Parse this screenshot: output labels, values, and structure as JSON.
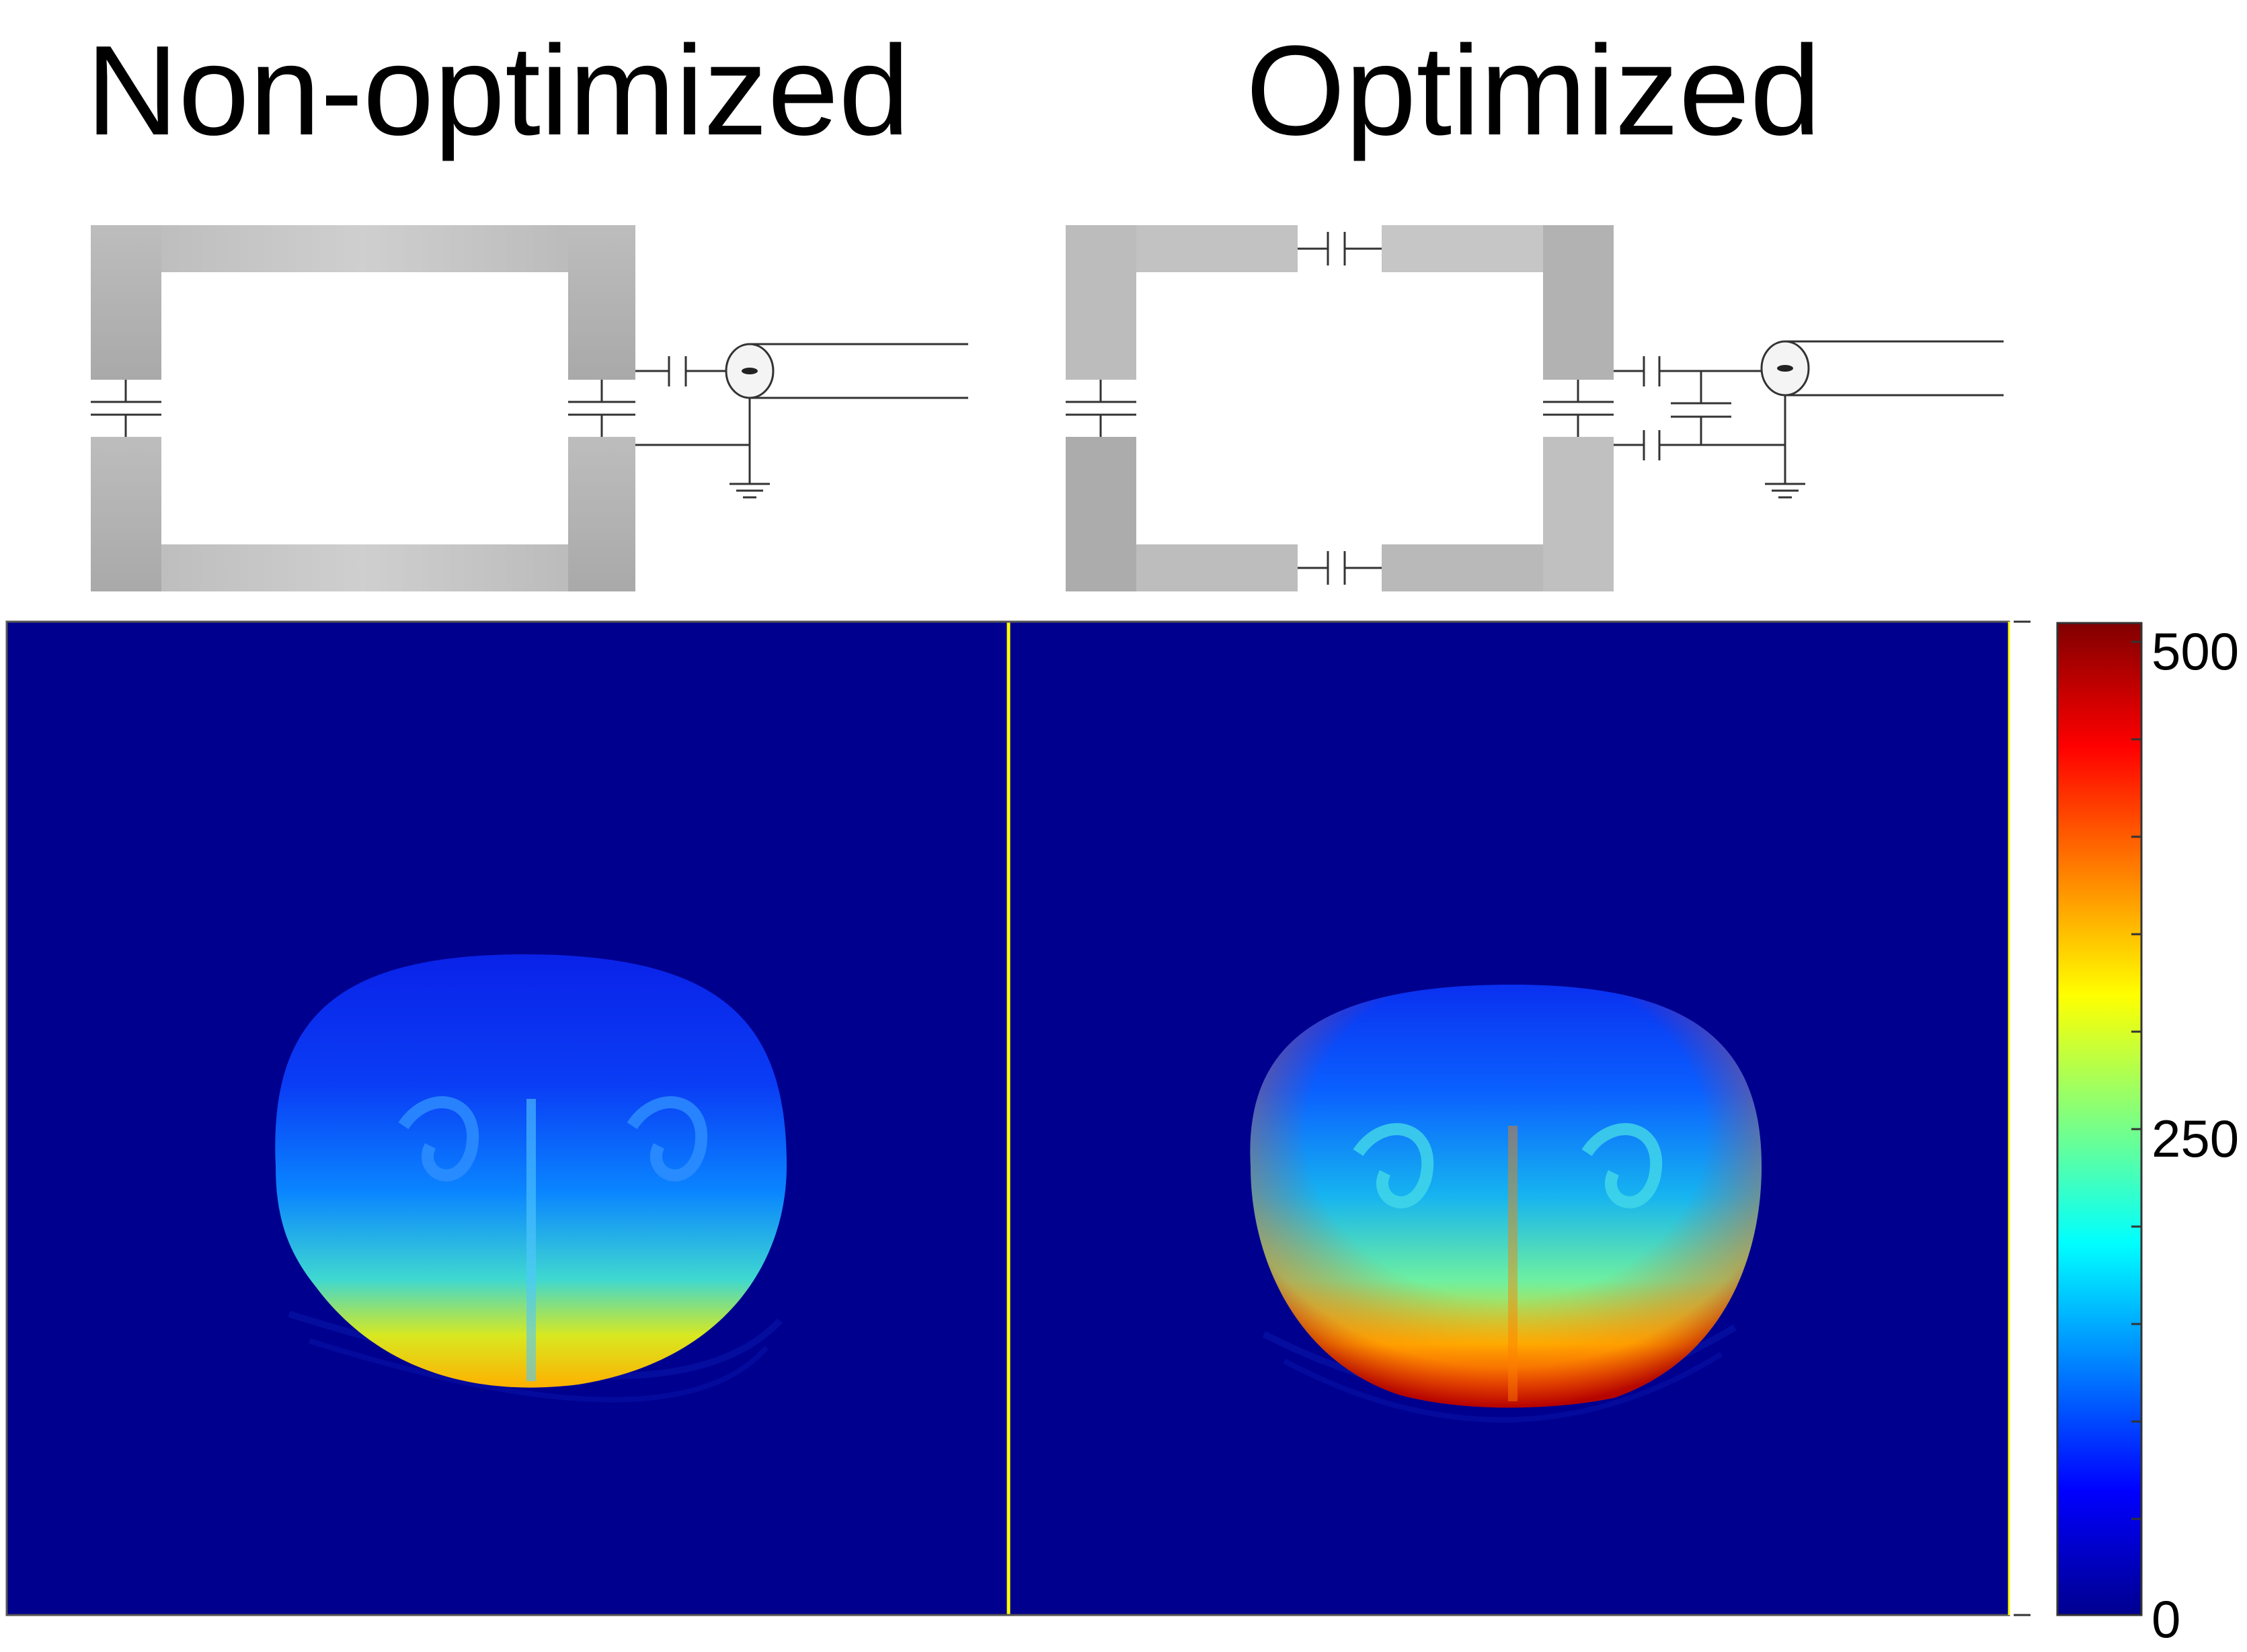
{
  "titles": {
    "left": "Non-optimized",
    "right": "Optimized"
  },
  "colorbar": {
    "min_label": "0",
    "mid_label": "250",
    "max_label": "500",
    "min": 0,
    "max": 500,
    "colormap": "jet"
  },
  "colors": {
    "background": "#00008F",
    "separator": "#FFFF00",
    "coil_gray": "#C0C0C0",
    "circuit_line": "#333333"
  }
}
